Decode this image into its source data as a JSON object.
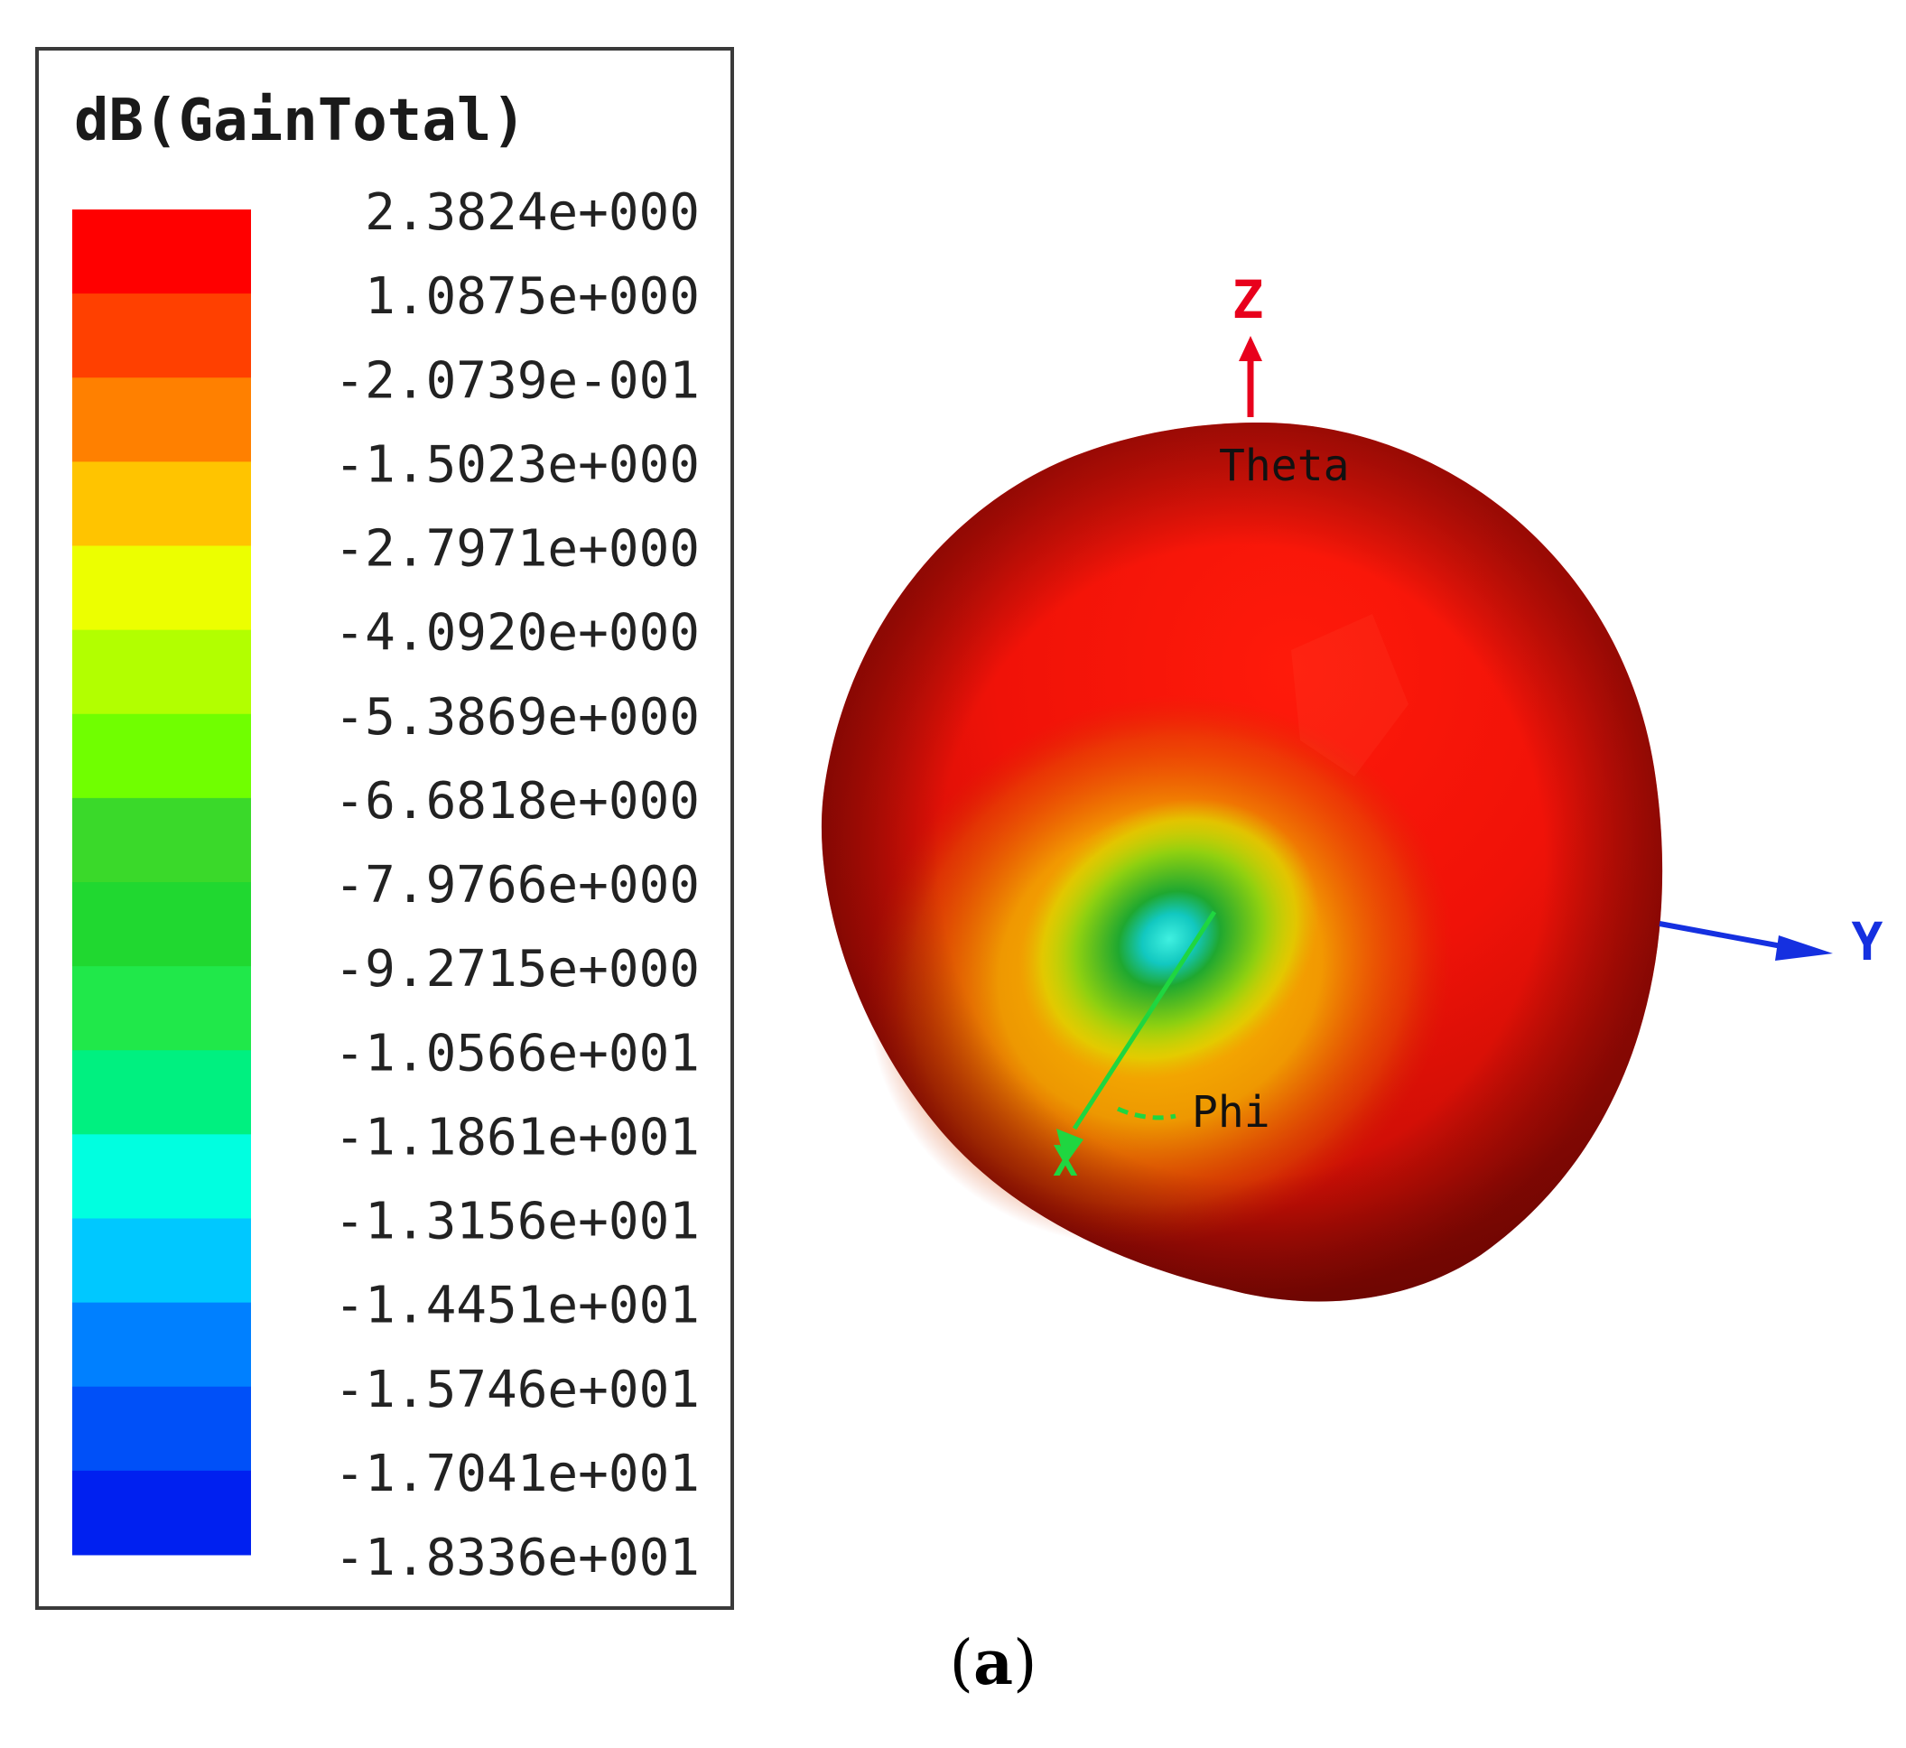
{
  "chart_data": {
    "type": "3d-radiation-pattern",
    "legend_title": "dB(GainTotal)",
    "legend_levels": [
      {
        "label": "2.3824e+000",
        "value": 2.3824
      },
      {
        "label": "1.0875e+000",
        "value": 1.0875
      },
      {
        "label": "-2.0739e-001",
        "value": -0.20739
      },
      {
        "label": "-1.5023e+000",
        "value": -1.5023
      },
      {
        "label": "-2.7971e+000",
        "value": -2.7971
      },
      {
        "label": "-4.0920e+000",
        "value": -4.092
      },
      {
        "label": "-5.3869e+000",
        "value": -5.3869
      },
      {
        "label": "-6.6818e+000",
        "value": -6.6818
      },
      {
        "label": "-7.9766e+000",
        "value": -7.9766
      },
      {
        "label": "-9.2715e+000",
        "value": -9.2715
      },
      {
        "label": "-1.0566e+001",
        "value": -10.566
      },
      {
        "label": "-1.1861e+001",
        "value": -11.861
      },
      {
        "label": "-1.3156e+001",
        "value": -13.156
      },
      {
        "label": "-1.4451e+001",
        "value": -14.451
      },
      {
        "label": "-1.5746e+001",
        "value": -15.746
      },
      {
        "label": "-1.7041e+001",
        "value": -17.041
      },
      {
        "label": "-1.8336e+001",
        "value": -18.336
      }
    ],
    "color_bands": [
      "#ff0000",
      "#ff4000",
      "#ff8000",
      "#ffc400",
      "#ecff00",
      "#b2ff00",
      "#70ff00",
      "#3ad92a",
      "#20d830",
      "#20e84a",
      "#00f080",
      "#00ffe0",
      "#00c8ff",
      "#0080ff",
      "#0050f8",
      "#0020f0"
    ],
    "axes": {
      "z_label": "Z",
      "y_label": "Y",
      "x_label": "X"
    },
    "annotations": {
      "theta": "Theta",
      "phi": "Phi"
    }
  },
  "colors": {
    "z_axis": "#e8001c",
    "y_axis": "#1530e0",
    "x_axis": "#1fd640",
    "text": "#000000",
    "frame": "#3a3a3a"
  },
  "caption": {
    "prefix": "(",
    "letter": "a",
    "suffix": ")"
  }
}
